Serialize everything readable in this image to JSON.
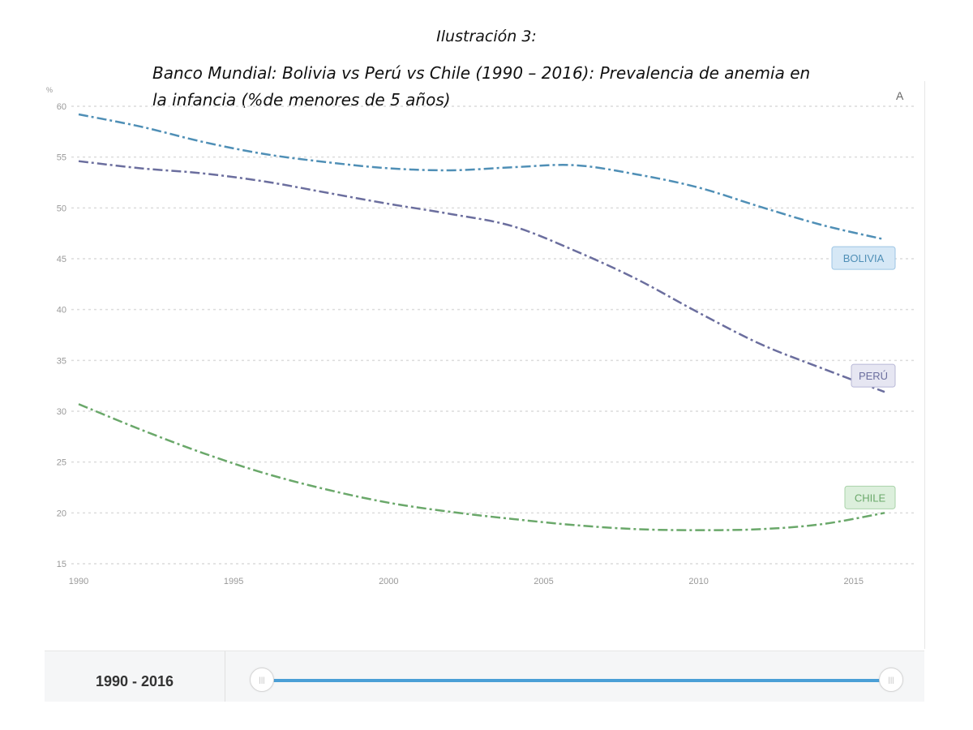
{
  "caption": {
    "title": "Ilustración 3:",
    "subtitle_line1": "Banco Mundial: Bolivia vs Perú vs Chile (1990 – 2016): Prevalencia de anemia en",
    "subtitle_line2": "la infancia (%de menores de 5 años)"
  },
  "corner_label": "A",
  "footer": {
    "range_label": "1990 - 2016"
  },
  "slider": {
    "start": 1990,
    "end": 2016
  },
  "chart_data": {
    "type": "line",
    "ylabel": "%",
    "xlim": [
      1990,
      2016
    ],
    "ylim": [
      15,
      60
    ],
    "x_ticks": [
      1990,
      1995,
      2000,
      2005,
      2010,
      2015
    ],
    "y_ticks": [
      15,
      20,
      25,
      30,
      35,
      40,
      45,
      50,
      55,
      60
    ],
    "grid": true,
    "series": [
      {
        "name": "BOLIVIA",
        "color": "#4f8fb6",
        "label_fill": "#d6e8f6",
        "label_stroke": "#9cc5e4",
        "x": [
          1990,
          1992,
          1994,
          1996,
          1998,
          2000,
          2002,
          2004,
          2006,
          2008,
          2010,
          2012,
          2014,
          2016
        ],
        "y": [
          59.2,
          58.0,
          56.5,
          55.3,
          54.5,
          53.9,
          53.7,
          54.0,
          54.2,
          53.3,
          52.0,
          50.1,
          48.3,
          46.9
        ]
      },
      {
        "name": "PERÚ",
        "color": "#6b6e9e",
        "label_fill": "#e6e6f2",
        "label_stroke": "#b8b8d6",
        "x": [
          1990,
          1992,
          1994,
          1996,
          1998,
          2000,
          2002,
          2004,
          2006,
          2008,
          2010,
          2012,
          2014,
          2016
        ],
        "y": [
          54.6,
          53.9,
          53.4,
          52.6,
          51.5,
          50.4,
          49.4,
          48.2,
          45.8,
          43.0,
          39.7,
          36.6,
          34.2,
          31.9
        ]
      },
      {
        "name": "CHILE",
        "color": "#6aa86a",
        "label_fill": "#dcefdc",
        "label_stroke": "#a9d3a9",
        "x": [
          1990,
          1992,
          1994,
          1996,
          1998,
          2000,
          2002,
          2004,
          2006,
          2008,
          2010,
          2012,
          2014,
          2016
        ],
        "y": [
          30.7,
          28.2,
          25.9,
          23.9,
          22.3,
          21.0,
          20.1,
          19.4,
          18.8,
          18.4,
          18.3,
          18.4,
          18.9,
          20.0
        ]
      }
    ]
  }
}
